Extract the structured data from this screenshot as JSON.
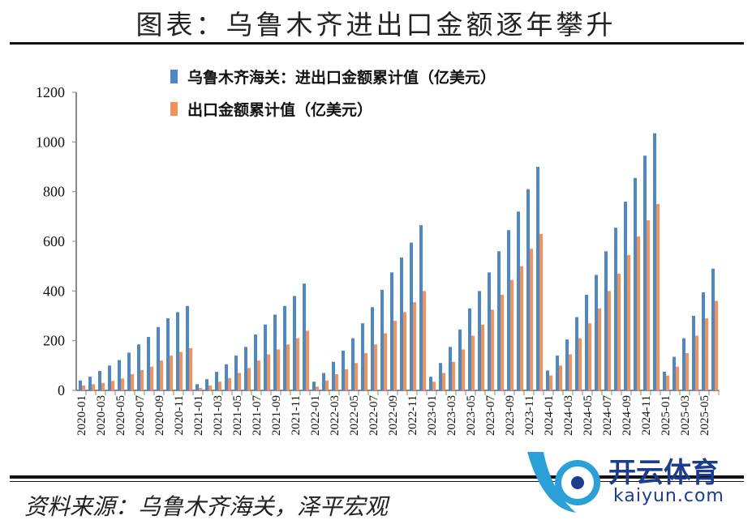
{
  "header": {
    "title": "图表：乌鲁木齐进出口金额逐年攀升"
  },
  "footer": {
    "source": "资料来源：乌鲁木齐海关，泽平宏观",
    "watermark": "开云体育",
    "watermark_url": "kaiyun.com"
  },
  "colors": {
    "total": "#4f86c6",
    "exports": "#f0935a"
  },
  "chart_data": {
    "type": "bar",
    "title": "",
    "xlabel": "",
    "ylabel": "",
    "ylim": [
      0,
      1200
    ],
    "yticks": [
      0,
      200,
      400,
      600,
      800,
      1000,
      1200
    ],
    "legend_placement": "top-center",
    "categories": [
      "2020-01",
      "2020-02",
      "2020-03",
      "2020-04",
      "2020-05",
      "2020-06",
      "2020-07",
      "2020-08",
      "2020-09",
      "2020-10",
      "2020-11",
      "2020-12",
      "2021-01",
      "2021-02",
      "2021-03",
      "2021-04",
      "2021-05",
      "2021-06",
      "2021-07",
      "2021-08",
      "2021-09",
      "2021-10",
      "2021-11",
      "2021-12",
      "2022-01",
      "2022-02",
      "2022-03",
      "2022-04",
      "2022-05",
      "2022-06",
      "2022-07",
      "2022-08",
      "2022-09",
      "2022-10",
      "2022-11",
      "2022-12",
      "2023-01",
      "2023-02",
      "2023-03",
      "2023-04",
      "2023-05",
      "2023-06",
      "2023-07",
      "2023-08",
      "2023-09",
      "2023-10",
      "2023-11",
      "2023-12",
      "2024-01",
      "2024-02",
      "2024-03",
      "2024-04",
      "2024-05",
      "2024-06",
      "2024-07",
      "2024-08",
      "2024-09",
      "2024-10",
      "2024-11",
      "2024-12",
      "2025-01",
      "2025-02",
      "2025-03",
      "2025-04",
      "2025-05",
      "2025-06"
    ],
    "series": [
      {
        "name": "乌鲁木齐海关：进出口金额累计值（亿美元）",
        "values": [
          40,
          55,
          78,
          100,
          122,
          152,
          185,
          215,
          255,
          290,
          315,
          340,
          25,
          45,
          75,
          105,
          140,
          175,
          225,
          265,
          305,
          340,
          380,
          430,
          35,
          70,
          115,
          160,
          210,
          270,
          335,
          405,
          475,
          535,
          595,
          665,
          55,
          110,
          175,
          245,
          330,
          400,
          475,
          560,
          645,
          720,
          810,
          900,
          80,
          140,
          205,
          295,
          385,
          465,
          560,
          655,
          760,
          855,
          945,
          1035,
          75,
          135,
          210,
          300,
          395,
          490
        ]
      },
      {
        "name": "出口金额累计值（亿美元）",
        "values": [
          20,
          25,
          30,
          38,
          48,
          65,
          82,
          95,
          120,
          140,
          155,
          170,
          10,
          20,
          35,
          50,
          70,
          90,
          120,
          145,
          165,
          185,
          210,
          240,
          15,
          40,
          65,
          85,
          110,
          150,
          185,
          230,
          280,
          315,
          355,
          400,
          35,
          70,
          115,
          165,
          220,
          265,
          325,
          385,
          445,
          500,
          570,
          630,
          60,
          100,
          145,
          210,
          270,
          330,
          400,
          470,
          545,
          620,
          685,
          750,
          60,
          95,
          150,
          220,
          290,
          360
        ]
      }
    ]
  }
}
